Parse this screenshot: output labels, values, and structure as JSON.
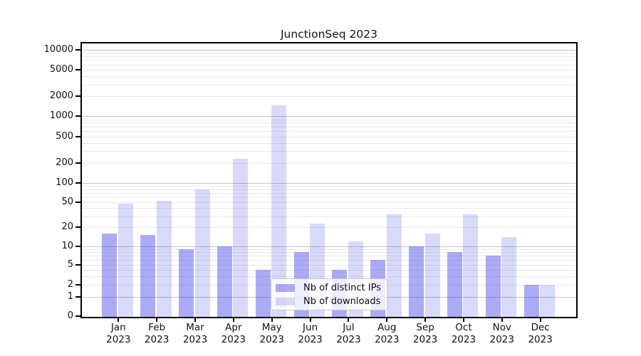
{
  "chart_data": {
    "type": "bar",
    "title": "JunctionSeq 2023",
    "categories": [
      "Jan",
      "Feb",
      "Mar",
      "Apr",
      "May",
      "Jun",
      "Jul",
      "Aug",
      "Sep",
      "Oct",
      "Nov",
      "Dec"
    ],
    "category_year": "2023",
    "series": [
      {
        "name": "Nb of distinct IPs",
        "values": [
          16,
          15,
          9,
          10,
          4,
          8,
          4,
          6,
          10,
          8,
          7,
          2
        ]
      },
      {
        "name": "Nb of downloads",
        "values": [
          47,
          52,
          80,
          230,
          1450,
          23,
          12,
          32,
          16,
          32,
          14,
          2
        ]
      }
    ],
    "xlabel": "",
    "ylabel": "",
    "y_axis": {
      "scale": "symlog",
      "ticks": [
        0,
        1,
        2,
        5,
        10,
        20,
        50,
        100,
        200,
        500,
        1000,
        2000,
        5000,
        10000
      ],
      "major_decades": [
        1,
        10,
        100,
        1000,
        10000
      ],
      "ylim": [
        0,
        13000
      ]
    },
    "grid": true,
    "legend_position": "lower center",
    "colors": {
      "distinct_ips_bar": "rgba(64,64,232,0.44)",
      "downloads_bar": "rgba(64,64,232,0.20)",
      "grid_major": "#c3c3c3",
      "grid_minor": "#e9e9e9",
      "spine": "#000000"
    }
  }
}
